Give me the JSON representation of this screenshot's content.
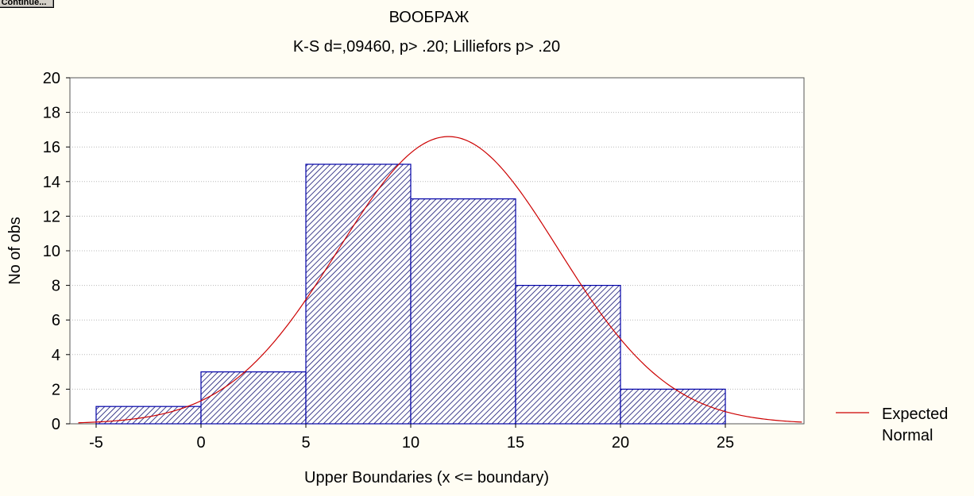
{
  "window": {
    "continue_label": "Continue..."
  },
  "chart_data": {
    "type": "bar",
    "title": "ВООБРАЖ",
    "subtitle": "K-S d=,09460, p> .20; Lilliefors p> .20",
    "xlabel": "Upper Boundaries (x <= boundary)",
    "ylabel": "No of obs",
    "xlim": [
      -6.25,
      28.75
    ],
    "ylim": [
      0,
      20
    ],
    "x_ticks": [
      "-5",
      "0",
      "5",
      "10",
      "15",
      "20",
      "25"
    ],
    "y_ticks": [
      "0",
      "2",
      "4",
      "6",
      "8",
      "10",
      "12",
      "14",
      "16",
      "18",
      "20"
    ],
    "bins": [
      {
        "from": -5,
        "to": 0,
        "value": 1
      },
      {
        "from": 0,
        "to": 5,
        "value": 3
      },
      {
        "from": 5,
        "to": 10,
        "value": 15
      },
      {
        "from": 10,
        "to": 15,
        "value": 13
      },
      {
        "from": 15,
        "to": 20,
        "value": 8
      },
      {
        "from": 20,
        "to": 25,
        "value": 2
      }
    ],
    "expected_normal": {
      "mean": 11.8,
      "sd": 5.25,
      "peak": 16.6
    },
    "legend": {
      "placement": "right",
      "entries": [
        "Expected",
        "Normal"
      ]
    },
    "grid": true,
    "colors": {
      "bar_stroke": "#0000a8",
      "hatch": "#101070",
      "curve": "#cc0000",
      "grid": "#b8b8b8",
      "background": "#fffdf3",
      "plot_bg": "#ffffff"
    }
  }
}
